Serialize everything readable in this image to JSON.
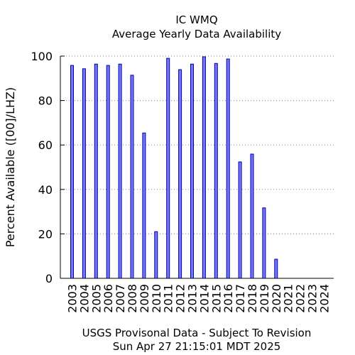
{
  "chart_data": {
    "type": "bar",
    "title": "IC WMQ",
    "subtitle": "Average Yearly Data Availability",
    "ylabel": "Percent Available ([00]/LHZ)",
    "xlabel": "",
    "footer": [
      "USGS Provisonal Data - Subject To Revision",
      "Sun Apr 27 21:15:01 MDT 2025"
    ],
    "ylim": [
      0,
      100
    ],
    "yticks": [
      0,
      20,
      40,
      60,
      80,
      100
    ],
    "grid": "horizontal-dotted",
    "categories": [
      "2003",
      "2004",
      "2005",
      "2006",
      "2007",
      "2008",
      "2009",
      "2010",
      "2011",
      "2012",
      "2013",
      "2014",
      "2015",
      "2016",
      "2017",
      "2018",
      "2019",
      "2020",
      "2021",
      "2022",
      "2023",
      "2024"
    ],
    "values": [
      95.8,
      94.3,
      96.4,
      95.8,
      96.4,
      91.4,
      65.4,
      21.0,
      99.0,
      93.9,
      96.4,
      99.7,
      96.7,
      98.7,
      52.4,
      55.9,
      31.7,
      8.6,
      0,
      0,
      0,
      0
    ],
    "colors": {
      "bar_fill": "#7777ff",
      "bar_stroke": "#0000aa",
      "grid": "#888888",
      "axis": "#000000"
    }
  }
}
